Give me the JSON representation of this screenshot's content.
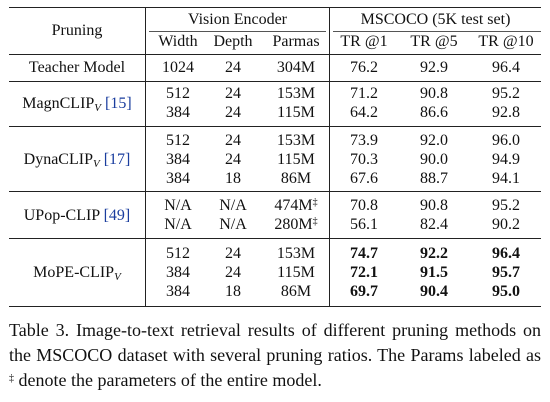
{
  "header": {
    "pruning": "Pruning",
    "vision_encoder": "Vision Encoder",
    "mscoco": "MSCOCO (5K test set)",
    "width": "Width",
    "depth": "Depth",
    "params": "Parmas",
    "tr1": "TR @1",
    "tr5": "TR @5",
    "tr10": "TR @10"
  },
  "groups": [
    {
      "name": "Teacher Model",
      "sub": "",
      "ref": "",
      "rows": [
        {
          "width": "1024",
          "depth": "24",
          "params": "304M",
          "dagger": "",
          "tr1": "76.2",
          "tr5": "92.9",
          "tr10": "96.4",
          "bold": false
        }
      ]
    },
    {
      "name": "MagnCLIP",
      "sub": "V",
      "ref": "[15]",
      "rows": [
        {
          "width": "512",
          "depth": "24",
          "params": "153M",
          "dagger": "",
          "tr1": "71.2",
          "tr5": "90.8",
          "tr10": "95.2",
          "bold": false
        },
        {
          "width": "384",
          "depth": "24",
          "params": "115M",
          "dagger": "",
          "tr1": "64.2",
          "tr5": "86.6",
          "tr10": "92.8",
          "bold": false
        }
      ]
    },
    {
      "name": "DynaCLIP",
      "sub": "V",
      "ref": "[17]",
      "rows": [
        {
          "width": "512",
          "depth": "24",
          "params": "153M",
          "dagger": "",
          "tr1": "73.9",
          "tr5": "92.0",
          "tr10": "96.0",
          "bold": false
        },
        {
          "width": "384",
          "depth": "24",
          "params": "115M",
          "dagger": "",
          "tr1": "70.3",
          "tr5": "90.0",
          "tr10": "94.9",
          "bold": false
        },
        {
          "width": "384",
          "depth": "18",
          "params": "86M",
          "dagger": "",
          "tr1": "67.6",
          "tr5": "88.7",
          "tr10": "94.1",
          "bold": false
        }
      ]
    },
    {
      "name": "UPop-CLIP",
      "sub": "",
      "ref": "[49]",
      "rows": [
        {
          "width": "N/A",
          "depth": "N/A",
          "params": "474M",
          "dagger": "‡",
          "tr1": "70.8",
          "tr5": "90.8",
          "tr10": "95.2",
          "bold": false
        },
        {
          "width": "N/A",
          "depth": "N/A",
          "params": "280M",
          "dagger": "‡",
          "tr1": "56.1",
          "tr5": "82.4",
          "tr10": "90.2",
          "bold": false
        }
      ]
    },
    {
      "name": "MoPE-CLIP",
      "sub": "V",
      "ref": "",
      "rows": [
        {
          "width": "512",
          "depth": "24",
          "params": "153M",
          "dagger": "",
          "tr1": "74.7",
          "tr5": "92.2",
          "tr10": "96.4",
          "bold": true
        },
        {
          "width": "384",
          "depth": "24",
          "params": "115M",
          "dagger": "",
          "tr1": "72.1",
          "tr5": "91.5",
          "tr10": "95.7",
          "bold": true
        },
        {
          "width": "384",
          "depth": "18",
          "params": "86M",
          "dagger": "",
          "tr1": "69.7",
          "tr5": "90.4",
          "tr10": "95.0",
          "bold": true
        }
      ]
    }
  ],
  "caption": {
    "part1": "Table 3. Image-to-text retrieval results of different pruning methods on the MSCOCO dataset with several pruning ratios. The Params labeled as ",
    "dagger": "‡",
    "part2": " denote the parameters of the entire model."
  }
}
